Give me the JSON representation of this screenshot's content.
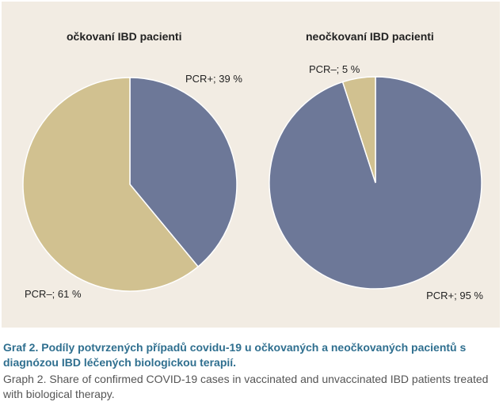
{
  "colors": {
    "positive": "#6d7898",
    "negative": "#d1c190",
    "panel_bg": "#f2ece3",
    "caption_cz": "#2f6f8f"
  },
  "chart_data": [
    {
      "type": "pie",
      "title": "očkovaní IBD pacienti",
      "slices": [
        {
          "name": "PCR+",
          "value": 39,
          "label": "PCR+; 39 %",
          "color": "#6d7898"
        },
        {
          "name": "PCR–",
          "value": 61,
          "label": "PCR–; 61 %",
          "color": "#d1c190"
        }
      ]
    },
    {
      "type": "pie",
      "title": "neočkovaní IBD pacienti",
      "slices": [
        {
          "name": "PCR+",
          "value": 95,
          "label": "PCR+; 95 %",
          "color": "#6d7898"
        },
        {
          "name": "PCR–",
          "value": 5,
          "label": "PCR–; 5 %",
          "color": "#d1c190"
        }
      ]
    }
  ],
  "caption": {
    "cz": "Graf 2. Podíly potvrzených případů covidu-19 u očkovaných a neočkovaných pacientů s diagnózou IBD léčených biologickou terapií.",
    "en": "Graph 2. Share of confirmed COVID-19 cases in vaccinated and unvaccinated IBD patients treated with biological therapy."
  }
}
